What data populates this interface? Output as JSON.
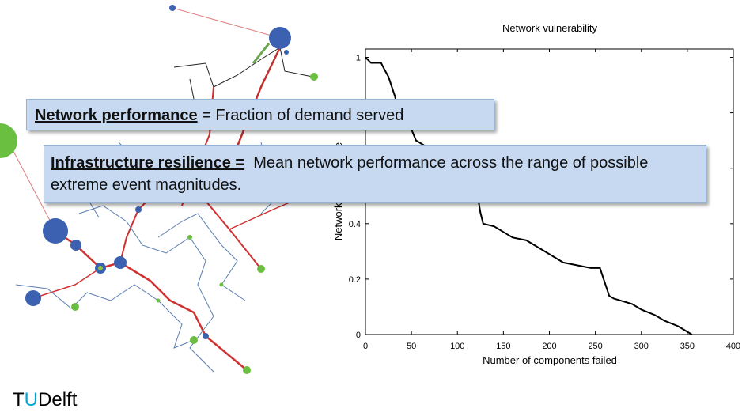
{
  "chart_data": {
    "type": "line",
    "title": "Network vulnerability",
    "xlabel": "Number of components failed",
    "ylabel": "Network performance",
    "x": [
      0,
      6,
      17,
      20,
      25,
      28,
      32,
      35,
      40,
      45,
      50,
      55,
      60,
      65,
      70,
      75,
      80,
      90,
      100,
      110,
      118,
      122,
      125,
      128,
      140,
      150,
      160,
      175,
      190,
      200,
      215,
      230,
      245,
      255,
      265,
      270,
      280,
      290,
      300,
      315,
      325,
      340,
      350,
      355
    ],
    "series": [
      {
        "name": "Network performance",
        "color": "#000000",
        "values": [
          1,
          0.98,
          0.98,
          0.96,
          0.93,
          0.9,
          0.86,
          0.82,
          0.79,
          0.77,
          0.74,
          0.7,
          0.69,
          0.68,
          0.66,
          0.65,
          0.63,
          0.6,
          0.57,
          0.55,
          0.52,
          0.5,
          0.44,
          0.4,
          0.39,
          0.37,
          0.35,
          0.34,
          0.31,
          0.29,
          0.26,
          0.25,
          0.24,
          0.24,
          0.14,
          0.13,
          0.12,
          0.11,
          0.09,
          0.07,
          0.05,
          0.03,
          0.01,
          0
        ]
      }
    ],
    "xlim": [
      0,
      400
    ],
    "xticks": [
      0,
      50,
      100,
      150,
      200,
      250,
      300,
      350,
      400
    ],
    "ylim": [
      0,
      1.03
    ],
    "yticks": [
      0,
      0.2,
      0.4,
      0.6,
      0.8,
      1
    ],
    "grid": false
  },
  "callouts": [
    {
      "term": "Network performance",
      "text": "= Fraction of demand served"
    },
    {
      "term": "Infrastructure resilience =",
      "text": "Mean network performance across the range of possible extreme event magnitudes."
    }
  ],
  "logo": [
    "T",
    "U",
    "Delft"
  ]
}
